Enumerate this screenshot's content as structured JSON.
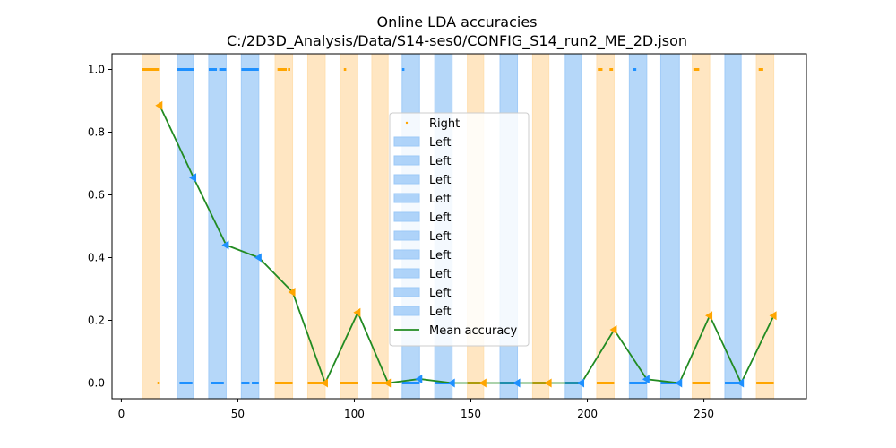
{
  "chart_data": {
    "type": "line",
    "title": "Online LDA accuracies",
    "subtitle": "C:/2D3D_Analysis/Data/S14-ses0/CONFIG_S14_run2_ME_2D.json",
    "xlabel": "",
    "ylabel": "",
    "xlim": [
      -4,
      294
    ],
    "ylim": [
      -0.05,
      1.05
    ],
    "xticks": [
      0,
      50,
      100,
      150,
      200,
      250
    ],
    "yticks": [
      0.0,
      0.2,
      0.4,
      0.6,
      0.8,
      1.0
    ],
    "ytick_labels": [
      "0.0",
      "0.2",
      "0.4",
      "0.6",
      "0.8",
      "1.0"
    ],
    "grid": false,
    "legend_position": "center",
    "colors": {
      "right": "#FFA500",
      "left": "#1E90FF",
      "right_span": "#FFDEAD",
      "left_span": "#9CC9F7",
      "mean": "#228B22"
    },
    "spans": [
      {
        "class": "Right",
        "x0": 9,
        "x1": 16.5
      },
      {
        "class": "Left",
        "x0": 24,
        "x1": 31
      },
      {
        "class": "Left",
        "x0": 37.5,
        "x1": 45
      },
      {
        "class": "Left",
        "x0": 51.5,
        "x1": 59
      },
      {
        "class": "Right",
        "x0": 66,
        "x1": 73.5
      },
      {
        "class": "Right",
        "x0": 80,
        "x1": 87.5
      },
      {
        "class": "Right",
        "x0": 94,
        "x1": 101.5
      },
      {
        "class": "Right",
        "x0": 107.5,
        "x1": 114.5
      },
      {
        "class": "Left",
        "x0": 120.5,
        "x1": 128
      },
      {
        "class": "Left",
        "x0": 134.5,
        "x1": 142
      },
      {
        "class": "Right",
        "x0": 148.5,
        "x1": 155.5
      },
      {
        "class": "Left",
        "x0": 162.5,
        "x1": 170
      },
      {
        "class": "Right",
        "x0": 176.5,
        "x1": 183.5
      },
      {
        "class": "Left",
        "x0": 190.5,
        "x1": 197.5
      },
      {
        "class": "Right",
        "x0": 204,
        "x1": 211.5
      },
      {
        "class": "Left",
        "x0": 218,
        "x1": 225.5
      },
      {
        "class": "Left",
        "x0": 231.5,
        "x1": 239.5
      },
      {
        "class": "Right",
        "x0": 245,
        "x1": 252.5
      },
      {
        "class": "Left",
        "x0": 259,
        "x1": 266
      },
      {
        "class": "Right",
        "x0": 272.5,
        "x1": 280
      }
    ],
    "prediction_segments": [
      {
        "class": "Right",
        "y": 1.0,
        "x0": 9,
        "x1": 16.5
      },
      {
        "class": "Right",
        "y": 0.0,
        "x0": 15.5,
        "x1": 16.5
      },
      {
        "class": "Left",
        "y": 1.0,
        "x0": 24,
        "x1": 31
      },
      {
        "class": "Left",
        "y": 0.0,
        "x0": 25,
        "x1": 30.5
      },
      {
        "class": "Left",
        "y": 1.0,
        "x0": 37.5,
        "x1": 41
      },
      {
        "class": "Left",
        "y": 1.0,
        "x0": 42,
        "x1": 45
      },
      {
        "class": "Left",
        "y": 0.0,
        "x0": 38.5,
        "x1": 44
      },
      {
        "class": "Left",
        "y": 1.0,
        "x0": 51.5,
        "x1": 59
      },
      {
        "class": "Left",
        "y": 0.0,
        "x0": 51.5,
        "x1": 55
      },
      {
        "class": "Left",
        "y": 0.0,
        "x0": 56,
        "x1": 59
      },
      {
        "class": "Right",
        "y": 1.0,
        "x0": 67,
        "x1": 71
      },
      {
        "class": "Right",
        "y": 1.0,
        "x0": 71.5,
        "x1": 72.5
      },
      {
        "class": "Right",
        "y": 0.0,
        "x0": 66,
        "x1": 73.5
      },
      {
        "class": "Right",
        "y": 0.0,
        "x0": 80,
        "x1": 87.5
      },
      {
        "class": "Right",
        "y": 1.0,
        "x0": 95.5,
        "x1": 96.5
      },
      {
        "class": "Right",
        "y": 0.0,
        "x0": 94,
        "x1": 101.5
      },
      {
        "class": "Right",
        "y": 0.0,
        "x0": 107.5,
        "x1": 114.5
      },
      {
        "class": "Left",
        "y": 1.0,
        "x0": 120.5,
        "x1": 121.5
      },
      {
        "class": "Left",
        "y": 0.0,
        "x0": 120.5,
        "x1": 128
      },
      {
        "class": "Left",
        "y": 0.0,
        "x0": 134.5,
        "x1": 142
      },
      {
        "class": "Right",
        "y": 0.0,
        "x0": 148.5,
        "x1": 155.5
      },
      {
        "class": "Left",
        "y": 0.0,
        "x0": 162.5,
        "x1": 170
      },
      {
        "class": "Right",
        "y": 0.0,
        "x0": 176.5,
        "x1": 183.5
      },
      {
        "class": "Left",
        "y": 0.0,
        "x0": 190.5,
        "x1": 197.5
      },
      {
        "class": "Right",
        "y": 1.0,
        "x0": 204.5,
        "x1": 206.5
      },
      {
        "class": "Right",
        "y": 1.0,
        "x0": 209.5,
        "x1": 211
      },
      {
        "class": "Right",
        "y": 0.0,
        "x0": 204,
        "x1": 211.5
      },
      {
        "class": "Left",
        "y": 1.0,
        "x0": 219.5,
        "x1": 221
      },
      {
        "class": "Left",
        "y": 0.0,
        "x0": 218,
        "x1": 225.5
      },
      {
        "class": "Left",
        "y": 0.0,
        "x0": 231.5,
        "x1": 239.5
      },
      {
        "class": "Right",
        "y": 1.0,
        "x0": 245.5,
        "x1": 248
      },
      {
        "class": "Right",
        "y": 0.0,
        "x0": 245,
        "x1": 252.5
      },
      {
        "class": "Left",
        "y": 0.0,
        "x0": 259,
        "x1": 266
      },
      {
        "class": "Right",
        "y": 1.0,
        "x0": 273.5,
        "x1": 275.5
      },
      {
        "class": "Right",
        "y": 0.0,
        "x0": 272.5,
        "x1": 280
      }
    ],
    "series": [
      {
        "name": "Mean accuracy",
        "x": [
          16.5,
          31,
          45,
          59,
          73.5,
          87.5,
          101.5,
          114.5,
          128,
          142,
          155.5,
          170,
          183.5,
          197.5,
          211.5,
          225.5,
          239.5,
          252.5,
          266,
          280
        ],
        "y": [
          0.885,
          0.655,
          0.44,
          0.4,
          0.29,
          0.0,
          0.225,
          0.0,
          0.013,
          0.0,
          0.0,
          0.0,
          0.0,
          0.0,
          0.17,
          0.012,
          0.0,
          0.215,
          0.0,
          0.215
        ],
        "marker_class": [
          "Right",
          "Left",
          "Left",
          "Left",
          "Right",
          "Right",
          "Right",
          "Right",
          "Left",
          "Left",
          "Right",
          "Left",
          "Right",
          "Left",
          "Right",
          "Left",
          "Left",
          "Right",
          "Left",
          "Right"
        ]
      }
    ],
    "legend": [
      "Right",
      "Left",
      "Left",
      "Left",
      "Left",
      "Left",
      "Left",
      "Left",
      "Left",
      "Left",
      "Left",
      "Mean accuracy"
    ]
  }
}
